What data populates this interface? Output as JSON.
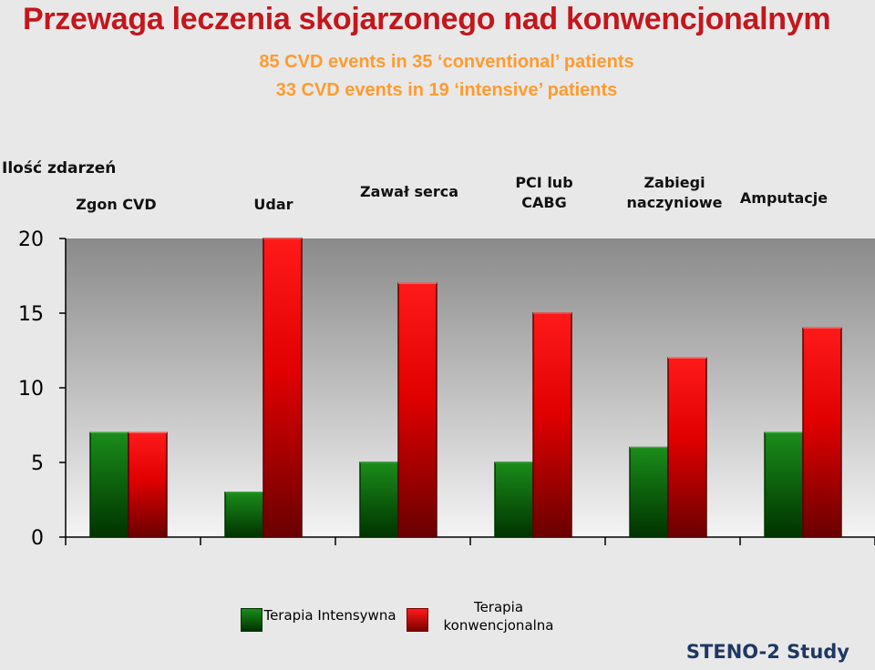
{
  "title": "Przewaga leczenia skojarzonego nad konwencjonalnym",
  "subtitle_lines": [
    "85 CVD events in 35 ‘conventional’ patients",
    "33 CVD events in 19 ‘intensive’ patients"
  ],
  "footer": "STENO-2  Study",
  "chart_data": {
    "type": "bar",
    "ylabel": "Ilość zdarzeń",
    "ylim": [
      0,
      20
    ],
    "yticks": [
      0,
      5,
      10,
      15,
      20
    ],
    "categories": [
      "Zgon  CVD",
      "Udar",
      "Zawał serca",
      "PCI  lub CABG",
      "Zabiegi naczyniowe",
      "Amputacje"
    ],
    "series": [
      {
        "name": "Terapia Intensywna",
        "color": "#1a7a1a",
        "values": [
          7,
          3,
          5,
          5,
          6,
          7
        ]
      },
      {
        "name": "Terapia konwencjonalna",
        "color": "#e00000",
        "values": [
          7,
          20,
          17,
          15,
          12,
          14
        ]
      }
    ],
    "grid": false,
    "legend_position": "bottom"
  }
}
